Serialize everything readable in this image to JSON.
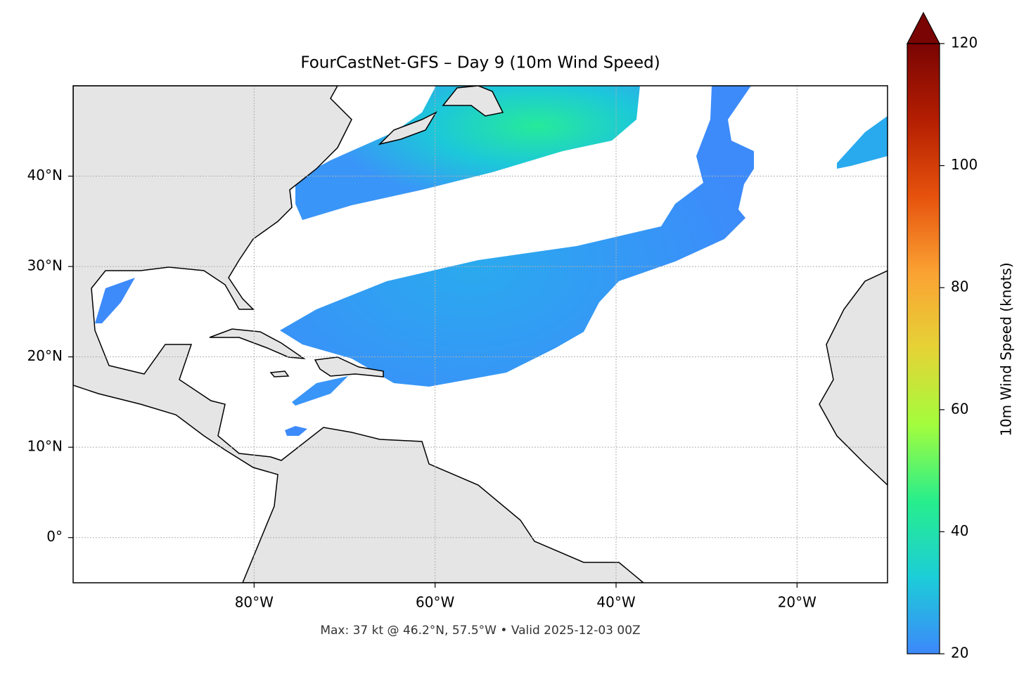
{
  "chart_data": {
    "type": "map",
    "title": "FourCastNet-GFS – Day 9 (10m Wind Speed)",
    "annotation": "Max: 37 kt @ 46.2°N, 57.5°W • Valid 2025-12-03 00Z",
    "xlim": [
      -100,
      -10
    ],
    "ylim": [
      -5,
      50
    ],
    "xticks": [
      {
        "value": -80,
        "label": "80°W"
      },
      {
        "value": -60,
        "label": "60°W"
      },
      {
        "value": -40,
        "label": "40°W"
      },
      {
        "value": -20,
        "label": "20°W"
      }
    ],
    "yticks": [
      {
        "value": 0,
        "label": "0°"
      },
      {
        "value": 10,
        "label": "10°N"
      },
      {
        "value": 20,
        "label": "20°N"
      },
      {
        "value": 30,
        "label": "30°N"
      },
      {
        "value": 40,
        "label": "40°N"
      }
    ],
    "grid": true,
    "colorbar": {
      "label": "10m Wind Speed (knots)",
      "lim": [
        20,
        120
      ],
      "ticks": [
        20,
        40,
        60,
        80,
        100,
        120
      ],
      "extend": "max",
      "colors": [
        "#3d88fb",
        "#1ccdd8",
        "#27ee8c",
        "#a3fd3d",
        "#e5d336",
        "#fba233",
        "#e6520d",
        "#b41e02",
        "#7a0403"
      ]
    }
  }
}
